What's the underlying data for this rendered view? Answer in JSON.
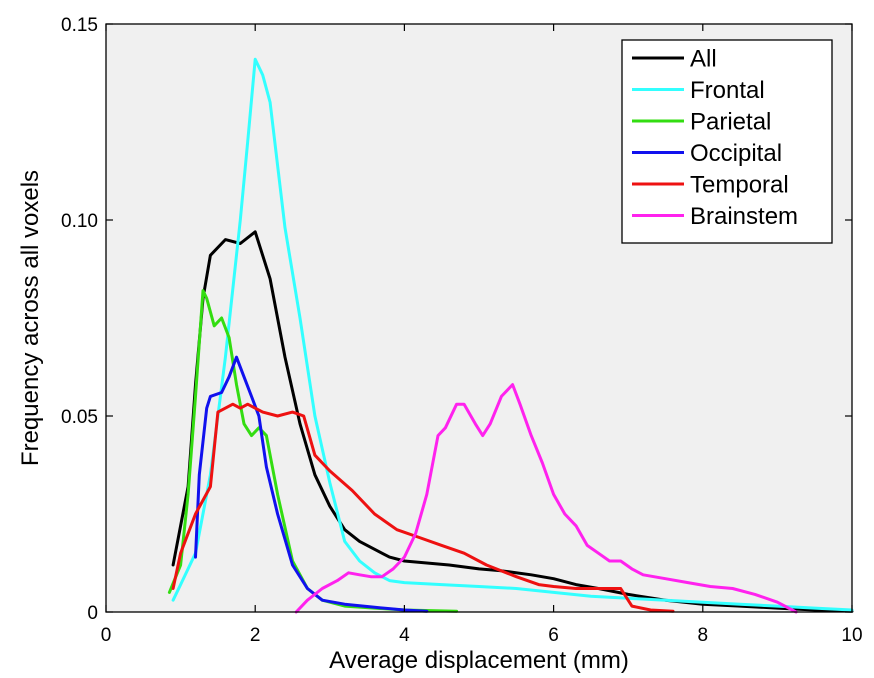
{
  "chart_data": {
    "type": "line",
    "title": "",
    "xlabel": "Average displacement (mm)",
    "ylabel": "Frequency across all voxels",
    "xlim": [
      0,
      10
    ],
    "ylim": [
      0,
      0.15
    ],
    "x_ticks": [
      0,
      2,
      4,
      6,
      8,
      10
    ],
    "x_tick_labels": [
      "0",
      "2",
      "4",
      "6",
      "8",
      "10"
    ],
    "y_ticks": [
      0,
      0.05,
      0.1,
      0.15
    ],
    "y_tick_labels": [
      "0",
      "0.05",
      "0.10",
      "0.15"
    ],
    "grid": false,
    "background": "#f0f0f0",
    "legend_position": "top-right",
    "series": [
      {
        "name": "All",
        "color": "#000000",
        "points": [
          [
            0.9,
            0.012
          ],
          [
            1.0,
            0.022
          ],
          [
            1.1,
            0.032
          ],
          [
            1.2,
            0.058
          ],
          [
            1.3,
            0.08
          ],
          [
            1.4,
            0.091
          ],
          [
            1.6,
            0.095
          ],
          [
            1.8,
            0.094
          ],
          [
            2.0,
            0.097
          ],
          [
            2.2,
            0.085
          ],
          [
            2.4,
            0.065
          ],
          [
            2.6,
            0.048
          ],
          [
            2.8,
            0.035
          ],
          [
            3.0,
            0.027
          ],
          [
            3.2,
            0.021
          ],
          [
            3.4,
            0.018
          ],
          [
            3.6,
            0.016
          ],
          [
            3.8,
            0.014
          ],
          [
            4.0,
            0.013
          ],
          [
            4.3,
            0.0125
          ],
          [
            4.6,
            0.012
          ],
          [
            5.0,
            0.011
          ],
          [
            5.3,
            0.0105
          ],
          [
            5.7,
            0.0095
          ],
          [
            6.0,
            0.0085
          ],
          [
            6.3,
            0.007
          ],
          [
            6.6,
            0.006
          ],
          [
            7.0,
            0.0045
          ],
          [
            7.5,
            0.003
          ],
          [
            8.0,
            0.002
          ],
          [
            8.5,
            0.0015
          ],
          [
            9.0,
            0.001
          ],
          [
            9.5,
            0.0005
          ],
          [
            10.0,
            0.0002
          ]
        ]
      },
      {
        "name": "Frontal",
        "color": "#33ffff",
        "points": [
          [
            0.9,
            0.003
          ],
          [
            1.0,
            0.007
          ],
          [
            1.2,
            0.015
          ],
          [
            1.4,
            0.035
          ],
          [
            1.6,
            0.065
          ],
          [
            1.8,
            0.1
          ],
          [
            1.9,
            0.12
          ],
          [
            2.0,
            0.141
          ],
          [
            2.1,
            0.137
          ],
          [
            2.2,
            0.13
          ],
          [
            2.4,
            0.098
          ],
          [
            2.6,
            0.075
          ],
          [
            2.8,
            0.05
          ],
          [
            3.0,
            0.033
          ],
          [
            3.2,
            0.018
          ],
          [
            3.4,
            0.013
          ],
          [
            3.6,
            0.01
          ],
          [
            3.8,
            0.008
          ],
          [
            4.0,
            0.0075
          ],
          [
            4.5,
            0.007
          ],
          [
            5.0,
            0.0065
          ],
          [
            5.5,
            0.006
          ],
          [
            6.0,
            0.005
          ],
          [
            6.5,
            0.004
          ],
          [
            7.0,
            0.0035
          ],
          [
            7.5,
            0.003
          ],
          [
            8.0,
            0.0025
          ],
          [
            8.5,
            0.002
          ],
          [
            9.0,
            0.0015
          ],
          [
            9.5,
            0.001
          ],
          [
            10.0,
            0.0005
          ]
        ]
      },
      {
        "name": "Parietal",
        "color": "#33dd11",
        "points": [
          [
            0.85,
            0.005
          ],
          [
            1.0,
            0.012
          ],
          [
            1.1,
            0.03
          ],
          [
            1.2,
            0.055
          ],
          [
            1.3,
            0.082
          ],
          [
            1.35,
            0.08
          ],
          [
            1.45,
            0.073
          ],
          [
            1.55,
            0.075
          ],
          [
            1.65,
            0.07
          ],
          [
            1.75,
            0.058
          ],
          [
            1.85,
            0.048
          ],
          [
            1.95,
            0.045
          ],
          [
            2.05,
            0.047
          ],
          [
            2.15,
            0.045
          ],
          [
            2.3,
            0.03
          ],
          [
            2.5,
            0.013
          ],
          [
            2.7,
            0.006
          ],
          [
            2.9,
            0.003
          ],
          [
            3.2,
            0.0015
          ],
          [
            3.6,
            0.001
          ],
          [
            4.0,
            0.0005
          ],
          [
            4.7,
            0.0002
          ]
        ]
      },
      {
        "name": "Occipital",
        "color": "#1111ee",
        "points": [
          [
            1.2,
            0.014
          ],
          [
            1.25,
            0.035
          ],
          [
            1.35,
            0.052
          ],
          [
            1.4,
            0.055
          ],
          [
            1.55,
            0.056
          ],
          [
            1.65,
            0.06
          ],
          [
            1.75,
            0.065
          ],
          [
            1.85,
            0.06
          ],
          [
            1.95,
            0.055
          ],
          [
            2.05,
            0.05
          ],
          [
            2.15,
            0.037
          ],
          [
            2.3,
            0.025
          ],
          [
            2.5,
            0.012
          ],
          [
            2.7,
            0.006
          ],
          [
            2.9,
            0.003
          ],
          [
            3.2,
            0.002
          ],
          [
            3.6,
            0.0012
          ],
          [
            4.0,
            0.0005
          ],
          [
            4.3,
            0.0002
          ]
        ]
      },
      {
        "name": "Temporal",
        "color": "#ee1111",
        "points": [
          [
            0.9,
            0.006
          ],
          [
            1.0,
            0.015
          ],
          [
            1.2,
            0.025
          ],
          [
            1.4,
            0.032
          ],
          [
            1.5,
            0.051
          ],
          [
            1.7,
            0.053
          ],
          [
            1.8,
            0.052
          ],
          [
            1.9,
            0.053
          ],
          [
            2.1,
            0.051
          ],
          [
            2.3,
            0.05
          ],
          [
            2.5,
            0.051
          ],
          [
            2.65,
            0.05
          ],
          [
            2.8,
            0.04
          ],
          [
            3.0,
            0.036
          ],
          [
            3.3,
            0.031
          ],
          [
            3.6,
            0.025
          ],
          [
            3.9,
            0.021
          ],
          [
            4.2,
            0.019
          ],
          [
            4.5,
            0.017
          ],
          [
            4.8,
            0.015
          ],
          [
            5.1,
            0.012
          ],
          [
            5.5,
            0.009
          ],
          [
            5.8,
            0.007
          ],
          [
            6.0,
            0.0065
          ],
          [
            6.3,
            0.006
          ],
          [
            6.6,
            0.006
          ],
          [
            6.9,
            0.006
          ],
          [
            7.05,
            0.0015
          ],
          [
            7.3,
            0.0005
          ],
          [
            7.6,
            0.0002
          ]
        ]
      },
      {
        "name": "Brainstem",
        "color": "#ff22ee",
        "points": [
          [
            2.55,
            0.0
          ],
          [
            2.7,
            0.003
          ],
          [
            2.9,
            0.006
          ],
          [
            3.1,
            0.008
          ],
          [
            3.25,
            0.01
          ],
          [
            3.4,
            0.0095
          ],
          [
            3.55,
            0.009
          ],
          [
            3.7,
            0.009
          ],
          [
            3.85,
            0.011
          ],
          [
            4.0,
            0.014
          ],
          [
            4.15,
            0.02
          ],
          [
            4.3,
            0.03
          ],
          [
            4.45,
            0.045
          ],
          [
            4.55,
            0.047
          ],
          [
            4.7,
            0.053
          ],
          [
            4.8,
            0.053
          ],
          [
            4.95,
            0.048
          ],
          [
            5.05,
            0.045
          ],
          [
            5.15,
            0.048
          ],
          [
            5.3,
            0.055
          ],
          [
            5.45,
            0.058
          ],
          [
            5.55,
            0.053
          ],
          [
            5.7,
            0.045
          ],
          [
            5.85,
            0.038
          ],
          [
            6.0,
            0.03
          ],
          [
            6.15,
            0.025
          ],
          [
            6.3,
            0.022
          ],
          [
            6.45,
            0.017
          ],
          [
            6.6,
            0.015
          ],
          [
            6.75,
            0.013
          ],
          [
            6.9,
            0.013
          ],
          [
            7.05,
            0.011
          ],
          [
            7.2,
            0.0095
          ],
          [
            7.5,
            0.0085
          ],
          [
            7.8,
            0.0075
          ],
          [
            8.1,
            0.0065
          ],
          [
            8.4,
            0.006
          ],
          [
            8.7,
            0.0045
          ],
          [
            9.0,
            0.0025
          ],
          [
            9.25,
            0.0
          ]
        ]
      }
    ]
  }
}
